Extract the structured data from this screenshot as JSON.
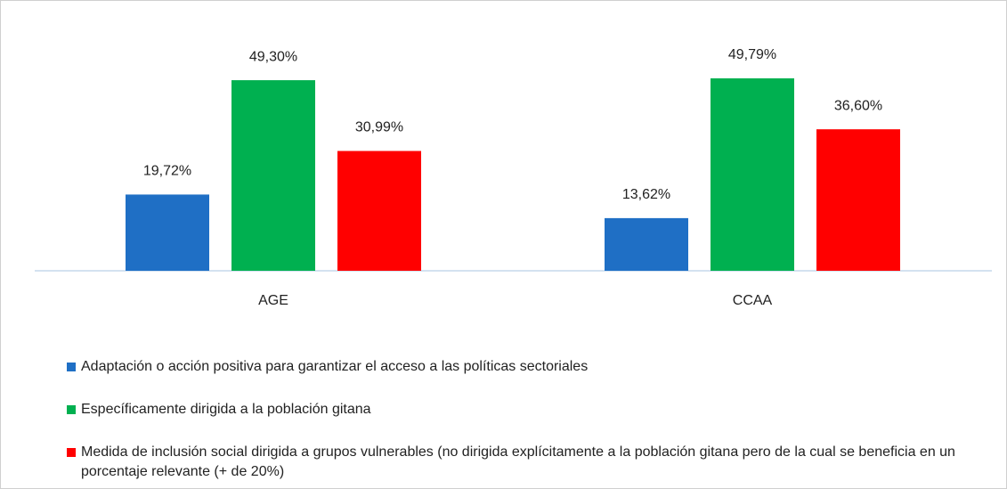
{
  "chart_data": {
    "type": "bar",
    "categories": [
      "AGE",
      "CCAA"
    ],
    "series": [
      {
        "name": "Adaptación o acción positiva para garantizar el acceso a las políticas sectoriales",
        "color": "#1f6fc5",
        "values": [
          19.72,
          13.62
        ],
        "value_labels": [
          "19,72%",
          "13,62%"
        ]
      },
      {
        "name": "Específicamente dirigida a la población gitana",
        "color": "#00b050",
        "values": [
          49.3,
          49.79
        ],
        "value_labels": [
          "49,30%",
          "49,79%"
        ]
      },
      {
        "name": "Medida de inclusión social dirigida a grupos vulnerables (no dirigida explícitamente a la población gitana pero de la cual se beneficia en un porcentaje relevante (+ de 20%)",
        "color": "#ff0000",
        "values": [
          30.99,
          36.6
        ],
        "value_labels": [
          "30,99%",
          "36,60%"
        ]
      }
    ]
  }
}
